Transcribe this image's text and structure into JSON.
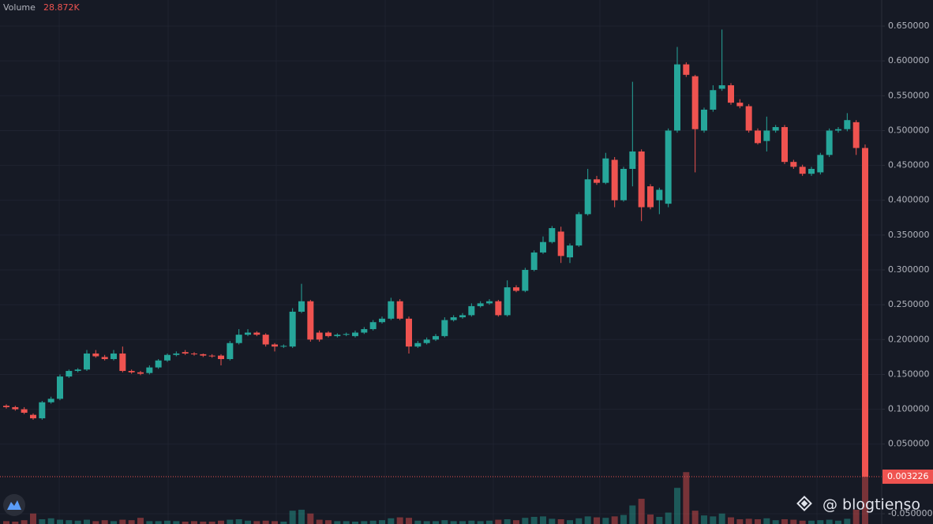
{
  "chart_data": {
    "type": "candlestick",
    "volume_title": "Volume",
    "volume_value_label": "28.872K",
    "watermark": "@ blogtienso",
    "up_color": "#26a69a",
    "down_color": "#ef5350",
    "grid": true,
    "ylim": [
      -0.0647,
      0.6874
    ],
    "yticks": [
      {
        "value": 0.65,
        "label": "0.650000"
      },
      {
        "value": 0.6,
        "label": "0.600000"
      },
      {
        "value": 0.55,
        "label": "0.550000"
      },
      {
        "value": 0.5,
        "label": "0.500000"
      },
      {
        "value": 0.45,
        "label": "0.450000"
      },
      {
        "value": 0.4,
        "label": "0.400000"
      },
      {
        "value": 0.35,
        "label": "0.350000"
      },
      {
        "value": 0.3,
        "label": "0.300000"
      },
      {
        "value": 0.25,
        "label": "0.250000"
      },
      {
        "value": 0.2,
        "label": "0.200000"
      },
      {
        "value": 0.15,
        "label": "0.150000"
      },
      {
        "value": 0.1,
        "label": "0.100000"
      },
      {
        "value": 0.05,
        "label": "0.050000"
      },
      {
        "value": -0.05,
        "label": "-0.050000"
      }
    ],
    "open": [
      0.105,
      0.103,
      0.1,
      0.092,
      0.087,
      0.11,
      0.115,
      0.147,
      0.155,
      0.157,
      0.18,
      0.175,
      0.172,
      0.18,
      0.155,
      0.153,
      0.152,
      0.16,
      0.17,
      0.178,
      0.182,
      0.18,
      0.179,
      0.177,
      0.177,
      0.172,
      0.195,
      0.207,
      0.21,
      0.207,
      0.193,
      0.19,
      0.19,
      0.24,
      0.255,
      0.21,
      0.21,
      0.205,
      0.207,
      0.205,
      0.21,
      0.215,
      0.225,
      0.23,
      0.255,
      0.23,
      0.19,
      0.195,
      0.2,
      0.205,
      0.228,
      0.232,
      0.235,
      0.248,
      0.252,
      0.255,
      0.235,
      0.275,
      0.27,
      0.3,
      0.325,
      0.34,
      0.355,
      0.318,
      0.335,
      0.38,
      0.43,
      0.425,
      0.458,
      0.4,
      0.445,
      0.47,
      0.42,
      0.4,
      0.395,
      0.5,
      0.595,
      0.578,
      0.5,
      0.53,
      0.56,
      0.565,
      0.54,
      0.535,
      0.5,
      0.485,
      0.5,
      0.505,
      0.455,
      0.448,
      0.438,
      0.44,
      0.465,
      0.5,
      0.502,
      0.512,
      0.475
    ],
    "high": [
      0.107,
      0.105,
      0.103,
      0.094,
      0.112,
      0.118,
      0.15,
      0.157,
      0.159,
      0.185,
      0.185,
      0.178,
      0.185,
      0.19,
      0.157,
      0.155,
      0.163,
      0.172,
      0.18,
      0.183,
      0.185,
      0.182,
      0.18,
      0.179,
      0.179,
      0.198,
      0.215,
      0.215,
      0.212,
      0.209,
      0.195,
      0.193,
      0.245,
      0.28,
      0.257,
      0.213,
      0.212,
      0.209,
      0.21,
      0.213,
      0.218,
      0.228,
      0.233,
      0.26,
      0.258,
      0.233,
      0.198,
      0.203,
      0.208,
      0.232,
      0.235,
      0.238,
      0.252,
      0.255,
      0.258,
      0.257,
      0.285,
      0.278,
      0.303,
      0.328,
      0.348,
      0.363,
      0.362,
      0.338,
      0.383,
      0.445,
      0.435,
      0.468,
      0.462,
      0.448,
      0.57,
      0.473,
      0.423,
      0.418,
      0.503,
      0.62,
      0.598,
      0.58,
      0.533,
      0.565,
      0.645,
      0.568,
      0.545,
      0.538,
      0.503,
      0.52,
      0.508,
      0.508,
      0.458,
      0.451,
      0.448,
      0.468,
      0.503,
      0.505,
      0.525,
      0.515,
      0.48
    ],
    "low": [
      0.101,
      0.098,
      0.093,
      0.085,
      0.085,
      0.108,
      0.113,
      0.145,
      0.153,
      0.155,
      0.174,
      0.17,
      0.17,
      0.153,
      0.151,
      0.149,
      0.15,
      0.158,
      0.168,
      0.176,
      0.178,
      0.177,
      0.175,
      0.174,
      0.163,
      0.17,
      0.193,
      0.205,
      0.205,
      0.19,
      0.183,
      0.188,
      0.188,
      0.238,
      0.197,
      0.197,
      0.203,
      0.203,
      0.205,
      0.203,
      0.208,
      0.213,
      0.223,
      0.228,
      0.228,
      0.18,
      0.188,
      0.193,
      0.198,
      0.203,
      0.226,
      0.23,
      0.233,
      0.246,
      0.25,
      0.233,
      0.233,
      0.268,
      0.268,
      0.298,
      0.323,
      0.338,
      0.31,
      0.31,
      0.333,
      0.378,
      0.422,
      0.423,
      0.39,
      0.398,
      0.42,
      0.37,
      0.387,
      0.38,
      0.39,
      0.497,
      0.577,
      0.44,
      0.497,
      0.527,
      0.557,
      0.537,
      0.532,
      0.497,
      0.48,
      0.47,
      0.497,
      0.452,
      0.445,
      0.435,
      0.435,
      0.437,
      0.462,
      0.497,
      0.499,
      0.465,
      0.003226
    ],
    "close": [
      0.103,
      0.1,
      0.095,
      0.087,
      0.11,
      0.115,
      0.147,
      0.155,
      0.157,
      0.18,
      0.176,
      0.172,
      0.18,
      0.155,
      0.153,
      0.151,
      0.16,
      0.17,
      0.178,
      0.18,
      0.18,
      0.179,
      0.177,
      0.176,
      0.172,
      0.195,
      0.207,
      0.21,
      0.207,
      0.193,
      0.19,
      0.191,
      0.24,
      0.255,
      0.2,
      0.2,
      0.205,
      0.207,
      0.208,
      0.21,
      0.215,
      0.225,
      0.23,
      0.255,
      0.23,
      0.19,
      0.195,
      0.2,
      0.205,
      0.228,
      0.232,
      0.235,
      0.248,
      0.252,
      0.255,
      0.235,
      0.275,
      0.27,
      0.3,
      0.325,
      0.34,
      0.36,
      0.32,
      0.335,
      0.38,
      0.43,
      0.425,
      0.46,
      0.4,
      0.445,
      0.47,
      0.39,
      0.39,
      0.415,
      0.5,
      0.595,
      0.58,
      0.502,
      0.53,
      0.558,
      0.565,
      0.54,
      0.535,
      0.5,
      0.482,
      0.5,
      0.505,
      0.455,
      0.448,
      0.438,
      0.445,
      0.465,
      0.5,
      0.502,
      0.515,
      0.475,
      0.003226
    ],
    "vlim": [
      0,
      35
    ],
    "volume": [
      0.6,
      0.5,
      0.8,
      2.2,
      1.0,
      1.2,
      0.9,
      0.8,
      0.7,
      0.9,
      0.6,
      0.8,
      0.6,
      0.9,
      0.8,
      1.3,
      0.6,
      0.6,
      0.7,
      0.6,
      0.5,
      0.6,
      0.5,
      0.5,
      0.7,
      0.9,
      1.0,
      0.7,
      0.6,
      0.7,
      0.6,
      0.5,
      2.8,
      3.0,
      2.2,
      0.9,
      0.8,
      0.6,
      0.6,
      0.5,
      0.6,
      0.7,
      0.8,
      1.2,
      1.4,
      1.3,
      0.7,
      0.6,
      0.6,
      0.8,
      0.6,
      0.6,
      0.7,
      0.6,
      0.7,
      0.9,
      1.0,
      0.8,
      1.3,
      1.5,
      1.6,
      1.1,
      1.0,
      0.8,
      1.2,
      1.6,
      1.4,
      1.3,
      1.6,
      1.9,
      3.9,
      5.3,
      2.0,
      1.5,
      2.4,
      7.6,
      10.9,
      2.8,
      1.8,
      1.6,
      2.2,
      1.4,
      1.0,
      1.1,
      1.0,
      1.2,
      0.8,
      1.0,
      0.9,
      0.7,
      0.7,
      0.8,
      0.9,
      0.7,
      1.1,
      3.0,
      28.872
    ]
  }
}
